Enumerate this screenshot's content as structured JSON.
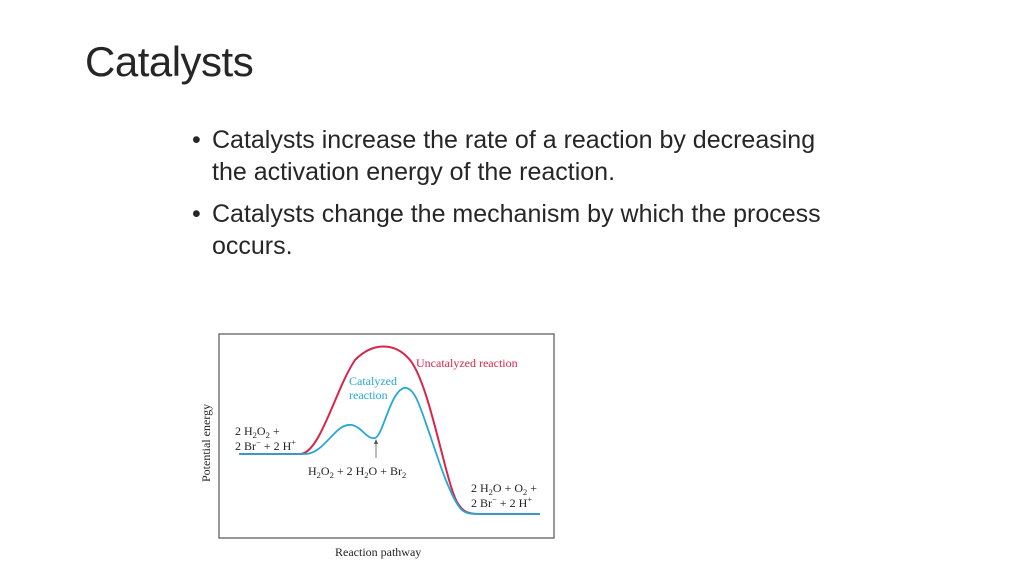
{
  "slide": {
    "title": "Catalysts",
    "bullets": [
      "Catalysts increase the rate of a reaction by decreasing the activation energy of the reaction.",
      "Catalysts change the mechanism by which the process occurs."
    ],
    "bullet_glyph": "•"
  },
  "chart_data": {
    "type": "line",
    "xlabel": "Reaction pathway",
    "ylabel": "Potential energy",
    "series": [
      {
        "name": "Uncatalyzed reaction",
        "color": "#d8264b"
      },
      {
        "name": "Catalyzed reaction",
        "color": "#25a8d4"
      }
    ],
    "labels": {
      "uncatalyzed": "Uncatalyzed reaction",
      "catalyzed_line1": "Catalyzed",
      "catalyzed_line2": "reaction",
      "reactants_line1": {
        "a": "2 H",
        "b": "2",
        "c": "O",
        "d": "2",
        "e": " +"
      },
      "reactants_line2": {
        "a": "2 Br",
        "b": "−",
        "c": " + 2 H",
        "d": "+"
      },
      "intermediate": {
        "a": "H",
        "b": "2",
        "c": "O",
        "d": "2",
        "e": " + 2 H",
        "f": "2",
        "g": "O + Br",
        "h": "2"
      },
      "products_line1": {
        "a": "2 H",
        "b": "2",
        "c": "O + O",
        "d": "2",
        "e": " +"
      },
      "products_line2": {
        "a": "2 Br",
        "b": "−",
        "c": " + 2 H",
        "d": "+"
      }
    }
  }
}
